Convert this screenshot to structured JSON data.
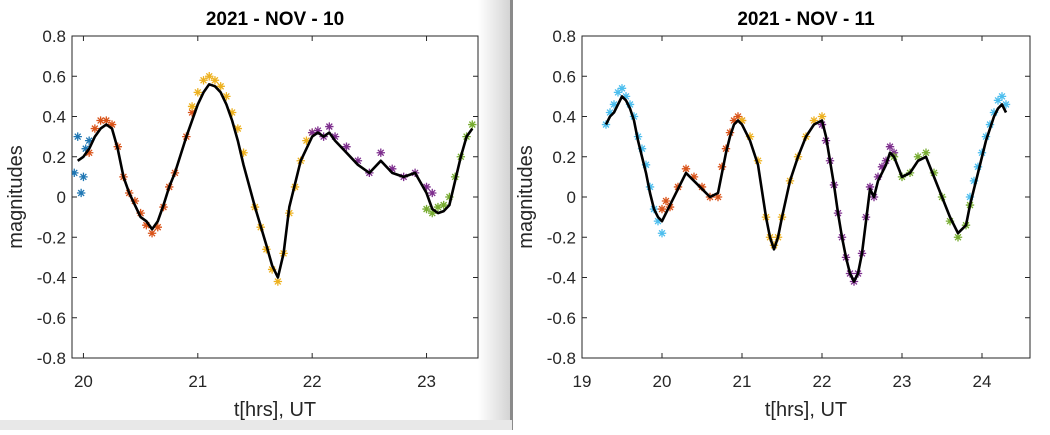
{
  "chart_data": [
    {
      "type": "scatter",
      "title": "2021 - NOV - 10",
      "xlabel": "t[hrs], UT",
      "ylabel": "magnitudes",
      "xlim": [
        19.9,
        23.45
      ],
      "ylim": [
        -0.8,
        0.8
      ],
      "xticks": [
        "20",
        "21",
        "22",
        "23"
      ],
      "yticks": [
        "-0.8",
        "-0.6",
        "-0.4",
        "-0.2",
        "0",
        "0.2",
        "0.4",
        "0.6",
        "0.8"
      ],
      "marker": "asterisk",
      "grid": false,
      "series": [
        {
          "color": "#1f77b4",
          "x": [
            19.92,
            19.95,
            19.98,
            20.0,
            20.02,
            20.05
          ],
          "y": [
            0.12,
            0.3,
            0.02,
            0.1,
            0.24,
            0.28
          ]
        },
        {
          "color": "#d95319",
          "x": [
            20.05,
            20.1,
            20.15,
            20.2,
            20.25,
            20.3,
            20.35,
            20.4,
            20.45,
            20.5,
            20.55,
            20.6,
            20.65,
            20.7,
            20.75,
            20.8,
            20.9,
            20.95
          ],
          "y": [
            0.22,
            0.34,
            0.38,
            0.38,
            0.36,
            0.25,
            0.1,
            0.02,
            -0.02,
            -0.08,
            -0.14,
            -0.18,
            -0.15,
            -0.05,
            0.05,
            0.12,
            0.3,
            0.42
          ]
        },
        {
          "color": "#edb120",
          "x": [
            20.95,
            21.0,
            21.05,
            21.1,
            21.15,
            21.2,
            21.25,
            21.3,
            21.35,
            21.4,
            21.5,
            21.55,
            21.6,
            21.65,
            21.7,
            21.75,
            21.8,
            21.85,
            21.9,
            21.95,
            22.0
          ],
          "y": [
            0.45,
            0.52,
            0.58,
            0.6,
            0.58,
            0.55,
            0.5,
            0.42,
            0.34,
            0.22,
            -0.05,
            -0.15,
            -0.26,
            -0.36,
            -0.42,
            -0.28,
            -0.08,
            0.05,
            0.18,
            0.28,
            0.32
          ]
        },
        {
          "color": "#7e2f8e",
          "x": [
            22.0,
            22.05,
            22.1,
            22.15,
            22.2,
            22.3,
            22.4,
            22.5,
            22.6,
            22.7,
            22.8,
            22.9,
            23.0,
            23.05
          ],
          "y": [
            0.32,
            0.33,
            0.3,
            0.35,
            0.3,
            0.25,
            0.18,
            0.12,
            0.22,
            0.14,
            0.1,
            0.12,
            0.05,
            0.02
          ]
        },
        {
          "color": "#77ac30",
          "x": [
            23.0,
            23.05,
            23.1,
            23.15,
            23.2,
            23.25,
            23.3,
            23.35,
            23.4
          ],
          "y": [
            -0.06,
            -0.08,
            -0.05,
            -0.04,
            0.0,
            0.1,
            0.2,
            0.3,
            0.36
          ]
        }
      ],
      "fit": {
        "color": "#000000",
        "x": [
          19.95,
          20.0,
          20.05,
          20.1,
          20.15,
          20.2,
          20.25,
          20.3,
          20.35,
          20.4,
          20.45,
          20.5,
          20.55,
          20.6,
          20.65,
          20.7,
          20.75,
          20.8,
          20.9,
          21.0,
          21.05,
          21.1,
          21.15,
          21.2,
          21.25,
          21.3,
          21.35,
          21.4,
          21.5,
          21.6,
          21.65,
          21.7,
          21.75,
          21.8,
          21.9,
          22.0,
          22.05,
          22.1,
          22.15,
          22.2,
          22.3,
          22.4,
          22.5,
          22.6,
          22.7,
          22.8,
          22.9,
          23.0,
          23.05,
          23.1,
          23.15,
          23.2,
          23.25,
          23.3,
          23.35,
          23.4
        ],
        "y": [
          0.18,
          0.2,
          0.24,
          0.3,
          0.34,
          0.36,
          0.34,
          0.24,
          0.1,
          0.02,
          -0.04,
          -0.1,
          -0.12,
          -0.16,
          -0.12,
          -0.04,
          0.05,
          0.12,
          0.3,
          0.46,
          0.52,
          0.56,
          0.55,
          0.52,
          0.46,
          0.38,
          0.28,
          0.16,
          -0.05,
          -0.24,
          -0.34,
          -0.4,
          -0.28,
          -0.05,
          0.18,
          0.3,
          0.32,
          0.3,
          0.32,
          0.28,
          0.22,
          0.16,
          0.12,
          0.18,
          0.12,
          0.1,
          0.12,
          0.02,
          -0.06,
          -0.08,
          -0.07,
          -0.04,
          0.08,
          0.2,
          0.3,
          0.34
        ]
      }
    },
    {
      "type": "scatter",
      "title": "2021 - NOV - 11",
      "xlabel": "t[hrs], UT",
      "ylabel": "magnitudes",
      "xlim": [
        19.0,
        24.6
      ],
      "ylim": [
        -0.8,
        0.8
      ],
      "xticks": [
        "19",
        "20",
        "21",
        "22",
        "23",
        "24"
      ],
      "yticks": [
        "-0.8",
        "-0.6",
        "-0.4",
        "-0.2",
        "0",
        "0.2",
        "0.4",
        "0.6",
        "0.8"
      ],
      "marker": "asterisk",
      "grid": false,
      "series": [
        {
          "color": "#4dbeee",
          "x": [
            19.3,
            19.35,
            19.4,
            19.45,
            19.5,
            19.55,
            19.6,
            19.65,
            19.7,
            19.75,
            19.8,
            19.85,
            19.9,
            19.95,
            20.0
          ],
          "y": [
            0.36,
            0.42,
            0.46,
            0.52,
            0.54,
            0.5,
            0.46,
            0.4,
            0.3,
            0.24,
            0.16,
            0.05,
            -0.06,
            -0.12,
            -0.18
          ]
        },
        {
          "color": "#d95319",
          "x": [
            20.0,
            20.05,
            20.1,
            20.2,
            20.3,
            20.4,
            20.5,
            20.6,
            20.7,
            20.75,
            20.8,
            20.85,
            20.9,
            20.95,
            21.0
          ],
          "y": [
            -0.06,
            -0.02,
            -0.05,
            0.05,
            0.14,
            0.1,
            0.05,
            0.0,
            0.0,
            0.15,
            0.24,
            0.32,
            0.38,
            0.4,
            0.38
          ]
        },
        {
          "color": "#edb120",
          "x": [
            21.0,
            21.1,
            21.2,
            21.3,
            21.35,
            21.4,
            21.45,
            21.5,
            21.6,
            21.7,
            21.8,
            21.9,
            22.0
          ],
          "y": [
            0.38,
            0.3,
            0.18,
            -0.1,
            -0.2,
            -0.24,
            -0.2,
            -0.1,
            0.08,
            0.2,
            0.3,
            0.38,
            0.4
          ]
        },
        {
          "color": "#7e2f8e",
          "x": [
            22.0,
            22.05,
            22.1,
            22.15,
            22.2,
            22.25,
            22.3,
            22.35,
            22.4,
            22.45,
            22.5,
            22.55,
            22.6,
            22.65,
            22.7,
            22.75,
            22.8,
            22.85,
            22.9
          ],
          "y": [
            0.36,
            0.28,
            0.18,
            0.06,
            -0.08,
            -0.2,
            -0.3,
            -0.38,
            -0.42,
            -0.38,
            -0.28,
            -0.1,
            0.05,
            0.0,
            0.1,
            0.15,
            0.18,
            0.25,
            0.22
          ]
        },
        {
          "color": "#77ac30",
          "x": [
            22.9,
            23.0,
            23.1,
            23.2,
            23.3,
            23.4,
            23.5,
            23.6,
            23.7,
            23.8,
            23.85
          ],
          "y": [
            0.2,
            0.1,
            0.12,
            0.2,
            0.22,
            0.12,
            0.0,
            -0.12,
            -0.2,
            -0.14,
            -0.04
          ]
        },
        {
          "color": "#4dbeee",
          "x": [
            23.85,
            23.9,
            23.95,
            24.0,
            24.05,
            24.1,
            24.15,
            24.2,
            24.25,
            24.3
          ],
          "y": [
            0.0,
            0.08,
            0.15,
            0.22,
            0.3,
            0.36,
            0.42,
            0.48,
            0.5,
            0.46
          ]
        }
      ],
      "fit": {
        "color": "#000000",
        "x": [
          19.3,
          19.35,
          19.4,
          19.45,
          19.5,
          19.55,
          19.6,
          19.65,
          19.7,
          19.75,
          19.8,
          19.85,
          19.9,
          19.95,
          20.0,
          20.05,
          20.1,
          20.2,
          20.3,
          20.4,
          20.5,
          20.6,
          20.7,
          20.75,
          20.8,
          20.85,
          20.9,
          20.95,
          21.0,
          21.1,
          21.2,
          21.3,
          21.35,
          21.4,
          21.45,
          21.5,
          21.6,
          21.7,
          21.8,
          21.9,
          22.0,
          22.05,
          22.1,
          22.15,
          22.2,
          22.25,
          22.3,
          22.35,
          22.4,
          22.45,
          22.5,
          22.55,
          22.6,
          22.65,
          22.7,
          22.75,
          22.8,
          22.85,
          22.9,
          23.0,
          23.1,
          23.2,
          23.3,
          23.4,
          23.5,
          23.6,
          23.7,
          23.8,
          23.85,
          23.9,
          23.95,
          24.0,
          24.05,
          24.1,
          24.15,
          24.2,
          24.25,
          24.3
        ],
        "y": [
          0.36,
          0.4,
          0.42,
          0.46,
          0.5,
          0.48,
          0.44,
          0.38,
          0.28,
          0.2,
          0.12,
          0.02,
          -0.06,
          -0.1,
          -0.12,
          -0.08,
          -0.04,
          0.04,
          0.12,
          0.08,
          0.04,
          0.0,
          0.02,
          0.12,
          0.22,
          0.3,
          0.36,
          0.38,
          0.36,
          0.28,
          0.16,
          -0.1,
          -0.2,
          -0.26,
          -0.2,
          -0.1,
          0.08,
          0.2,
          0.3,
          0.36,
          0.38,
          0.3,
          0.18,
          0.06,
          -0.08,
          -0.2,
          -0.3,
          -0.38,
          -0.42,
          -0.38,
          -0.28,
          -0.12,
          0.04,
          0.0,
          0.08,
          0.12,
          0.16,
          0.22,
          0.2,
          0.1,
          0.12,
          0.18,
          0.2,
          0.1,
          0.0,
          -0.1,
          -0.18,
          -0.14,
          -0.04,
          0.04,
          0.12,
          0.2,
          0.28,
          0.34,
          0.4,
          0.44,
          0.46,
          0.42
        ]
      }
    }
  ]
}
